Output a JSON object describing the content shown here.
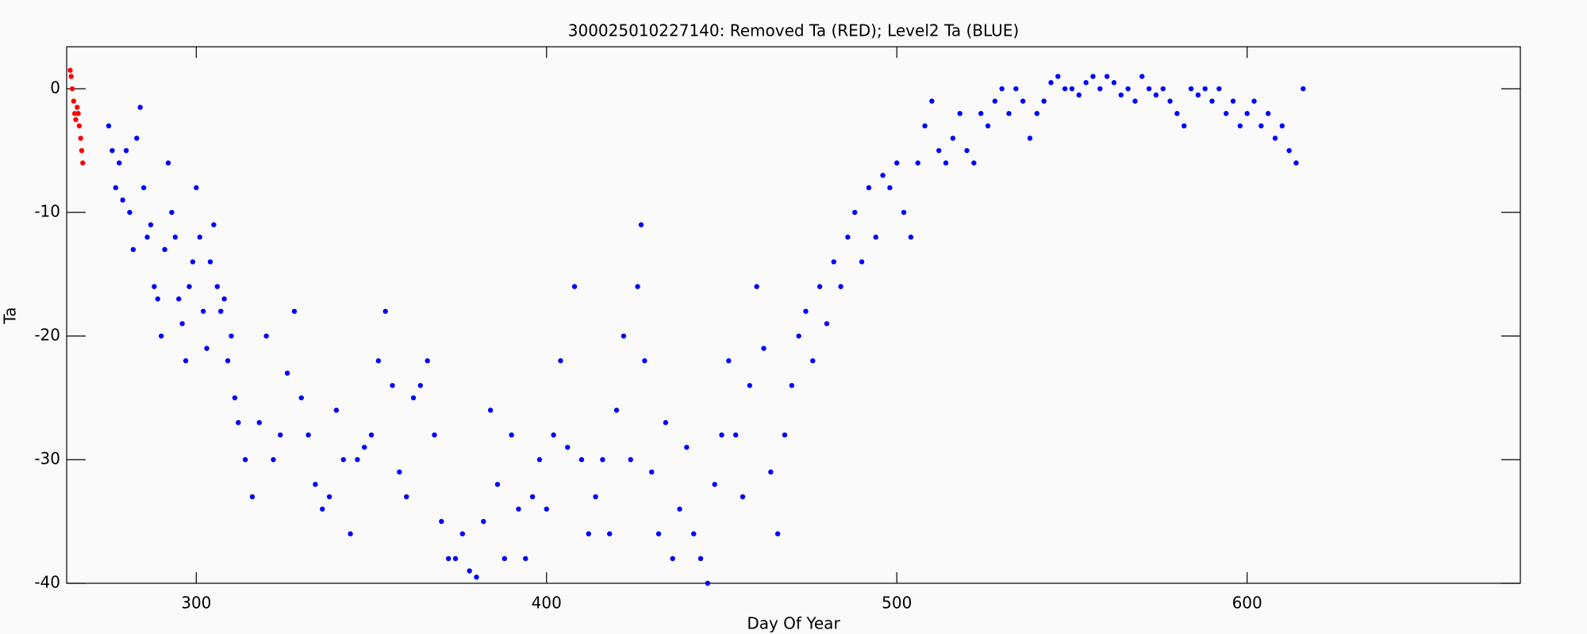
{
  "chart_data": {
    "type": "scatter",
    "title": "300025010227140: Removed Ta (RED); Level2 Ta (BLUE)",
    "x_label": "Day Of Year",
    "y_label": "Ta",
    "xlim": [
      263,
      678
    ],
    "ylim": [
      -40,
      3.4
    ],
    "xticks": [
      300,
      400,
      500,
      600
    ],
    "yticks": [
      -40,
      -30,
      -20,
      -10,
      0
    ],
    "series": [
      {
        "name": "Removed Ta",
        "color": "#ff0000",
        "x": [
          264,
          264.3,
          264.6,
          265,
          265.3,
          265.6,
          266,
          266.3,
          266.6,
          267,
          267.3,
          267.6
        ],
        "values": [
          1.5,
          1,
          0,
          -1,
          -2,
          -2.5,
          -1.5,
          -2,
          -3,
          -4,
          -5,
          -6
        ]
      },
      {
        "name": "Level2 Ta",
        "color": "#0000ff",
        "x": [
          275,
          276,
          277,
          278,
          279,
          280,
          281,
          282,
          283,
          284,
          285,
          286,
          287,
          288,
          289,
          290,
          291,
          292,
          293,
          294,
          295,
          296,
          297,
          298,
          299,
          300,
          301,
          302,
          303,
          304,
          305,
          306,
          307,
          308,
          309,
          310,
          311,
          312,
          314,
          316,
          318,
          320,
          322,
          324,
          326,
          328,
          330,
          332,
          334,
          336,
          338,
          340,
          342,
          344,
          346,
          348,
          350,
          352,
          354,
          356,
          358,
          360,
          362,
          364,
          366,
          368,
          370,
          372,
          374,
          376,
          378,
          380,
          382,
          384,
          386,
          388,
          390,
          392,
          394,
          396,
          398,
          400,
          402,
          404,
          406,
          408,
          410,
          412,
          414,
          416,
          418,
          420,
          422,
          424,
          426,
          427,
          428,
          430,
          432,
          434,
          436,
          438,
          440,
          442,
          444,
          446,
          448,
          450,
          452,
          454,
          456,
          458,
          460,
          462,
          464,
          466,
          468,
          470,
          472,
          474,
          476,
          478,
          480,
          482,
          484,
          486,
          488,
          490,
          492,
          494,
          496,
          498,
          500,
          502,
          504,
          506,
          508,
          510,
          512,
          514,
          516,
          518,
          520,
          522,
          524,
          526,
          528,
          530,
          532,
          534,
          536,
          538,
          540,
          542,
          544,
          546,
          548,
          550,
          552,
          554,
          556,
          558,
          560,
          562,
          564,
          566,
          568,
          570,
          572,
          574,
          576,
          578,
          580,
          582,
          584,
          586,
          588,
          590,
          592,
          594,
          596,
          598,
          600,
          602,
          604,
          606,
          608,
          610,
          612,
          614,
          616
        ],
        "values": [
          -3,
          -5,
          -8,
          -6,
          -9,
          -5,
          -10,
          -13,
          -4,
          -1.5,
          -8,
          -12,
          -11,
          -16,
          -17,
          -20,
          -13,
          -6,
          -10,
          -12,
          -17,
          -19,
          -22,
          -16,
          -14,
          -8,
          -12,
          -18,
          -21,
          -14,
          -11,
          -16,
          -18,
          -17,
          -22,
          -20,
          -25,
          -27,
          -30,
          -33,
          -27,
          -20,
          -30,
          -28,
          -23,
          -18,
          -25,
          -28,
          -32,
          -34,
          -33,
          -26,
          -30,
          -36,
          -30,
          -29,
          -28,
          -22,
          -18,
          -24,
          -31,
          -33,
          -25,
          -24,
          -22,
          -28,
          -35,
          -38,
          -38,
          -36,
          -39,
          -39.5,
          -35,
          -26,
          -32,
          -38,
          -28,
          -34,
          -38,
          -33,
          -30,
          -34,
          -28,
          -22,
          -29,
          -16,
          -30,
          -36,
          -33,
          -30,
          -36,
          -26,
          -20,
          -30,
          -16,
          -11,
          -22,
          -31,
          -36,
          -27,
          -38,
          -34,
          -29,
          -36,
          -38,
          -40,
          -32,
          -28,
          -22,
          -28,
          -33,
          -24,
          -16,
          -21,
          -31,
          -36,
          -28,
          -24,
          -20,
          -18,
          -22,
          -16,
          -19,
          -14,
          -16,
          -12,
          -10,
          -14,
          -8,
          -12,
          -7,
          -8,
          -6,
          -10,
          -12,
          -6,
          -3,
          -1,
          -5,
          -6,
          -4,
          -2,
          -5,
          -6,
          -2,
          -3,
          -1,
          0,
          -2,
          0,
          -1,
          -4,
          -2,
          -1,
          0.5,
          1,
          0,
          0,
          -0.5,
          0.5,
          1,
          0,
          1,
          0.5,
          -0.5,
          0,
          -1,
          1,
          0,
          -0.5,
          0,
          -1,
          -2,
          -3,
          0,
          -0.5,
          0,
          -1,
          0,
          -2,
          -1,
          -3,
          -2,
          -1,
          -3,
          -2,
          -4,
          -3,
          -5,
          -6,
          0
        ]
      }
    ]
  }
}
